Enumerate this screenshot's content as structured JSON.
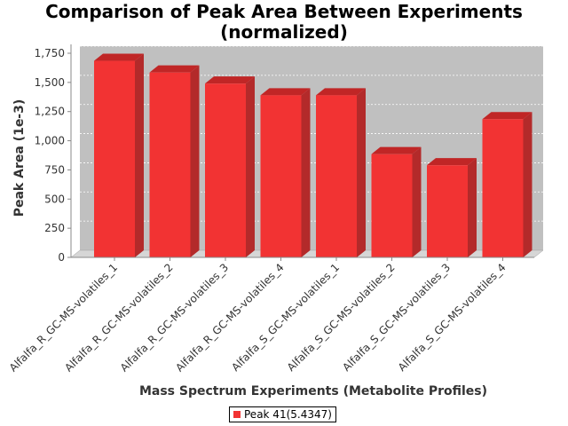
{
  "chart_data": {
    "type": "bar",
    "title": [
      "Comparison of Peak Area Between Experiments",
      "(normalized)"
    ],
    "xlabel": "Mass Spectrum Experiments (Metabolite Profiles)",
    "ylabel": "Peak Area (1e-3)",
    "categories": [
      "Alfalfa_R_GC-MS-volatiles_1",
      "Alfalfa_R_GC-MS-volatiles_2",
      "Alfalfa_R_GC-MS-volatiles_3",
      "Alfalfa_R_GC-MS-volatiles_4",
      "Alfalfa_S_GC-MS-volatiles_1",
      "Alfalfa_S_GC-MS-volatiles_2",
      "Alfalfa_S_GC-MS-volatiles_3",
      "Alfalfa_S_GC-MS-volatiles_4"
    ],
    "series": [
      {
        "name": "Peak 41(5.4347)",
        "values": [
          1685,
          1585,
          1490,
          1390,
          1390,
          885,
          790,
          1185
        ]
      }
    ],
    "ylim": [
      0,
      1750
    ],
    "yticks": [
      0,
      250,
      500,
      750,
      1000,
      1250,
      1500,
      1750
    ],
    "ytick_labels": [
      "0",
      "250",
      "500",
      "750",
      "1,000",
      "1,250",
      "1,500",
      "1,750"
    ],
    "grid": true,
    "legend_position": "bottom",
    "colors": {
      "bar_front": "#f23333",
      "bar_top": "#c02626",
      "bar_side": "#b32a2a",
      "plot_background": "#c0c0c0",
      "floor": "#d6d6d6"
    }
  }
}
